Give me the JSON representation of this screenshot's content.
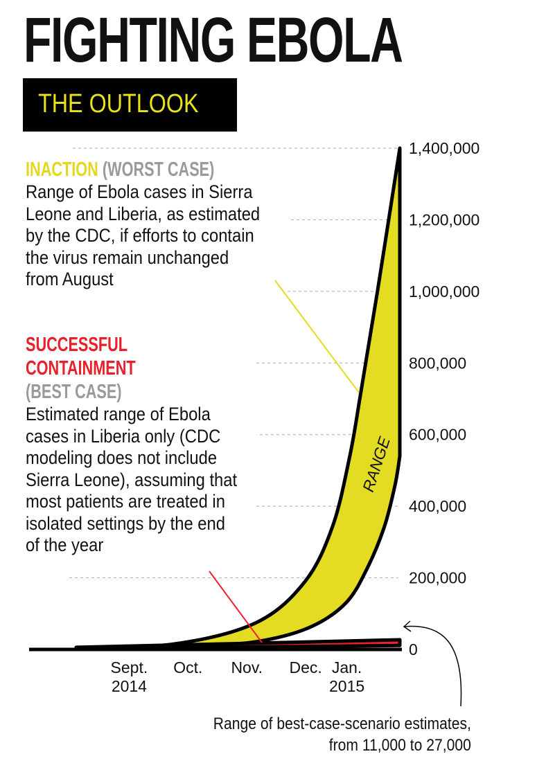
{
  "title": "FIGHTING EBOLA",
  "subtitle": "THE OUTLOOK",
  "worst_case": {
    "heading": "INACTION",
    "tag": "(WORST CASE)",
    "lines": [
      "Range of Ebola cases in Sierra",
      "Leone and Liberia, as estimated",
      "by the CDC, if efforts to contain",
      "the virus remain unchanged",
      "from August"
    ]
  },
  "best_case": {
    "heading_lines": [
      "SUCCESSFUL",
      "CONTAINMENT"
    ],
    "tag": "(BEST CASE)",
    "lines": [
      "Estimated range of Ebola",
      "cases in Liberia only (CDC",
      "modeling does not include",
      "Sierra Leone), assuming that",
      "most patients are treated in",
      "isolated settings by the end",
      "of the year"
    ]
  },
  "note": [
    "Range of best-case-scenario estimates,",
    "from 11,000 to 27,000"
  ],
  "colors": {
    "worst": "#e3dc22",
    "best": "#ec2230",
    "outline": "#000000",
    "grid": "#aaaaaa"
  },
  "chart_data": {
    "type": "area",
    "title": "Fighting Ebola: the outlook",
    "x_unit": "months since Sept. 1, 2014",
    "xlim": [
      -0.9,
      4.6
    ],
    "ylim": [
      0,
      1400000
    ],
    "grid": true,
    "y_ticks": [
      0,
      200000,
      400000,
      600000,
      800000,
      1000000,
      1200000,
      1400000
    ],
    "y_tick_labels": [
      "0",
      "200,000",
      "400,000",
      "600,000",
      "800,000",
      "1,000,000",
      "1,200,000",
      "1,400,000"
    ],
    "x_ticks": [
      {
        "x": 0,
        "lines": [
          "Sept.",
          "2014"
        ]
      },
      {
        "x": 1,
        "lines": [
          "Oct."
        ]
      },
      {
        "x": 2,
        "lines": [
          "Nov."
        ]
      },
      {
        "x": 3,
        "lines": [
          "Dec."
        ]
      },
      {
        "x": 3.7,
        "lines": [
          "Jan.",
          "2015"
        ]
      }
    ],
    "range_label": "RANGE",
    "series": [
      {
        "name": "Inaction (worst case) upper",
        "points": [
          [
            -0.9,
            5000
          ],
          [
            0.75,
            15000
          ],
          [
            2.16,
            75000
          ],
          [
            2.99,
            190000
          ],
          [
            3.46,
            345000
          ],
          [
            3.75,
            540000
          ],
          [
            3.93,
            710000
          ],
          [
            4.22,
            1000000
          ],
          [
            4.6,
            1400000
          ]
        ]
      },
      {
        "name": "Inaction (worst case) lower",
        "points": [
          [
            -0.9,
            4000
          ],
          [
            1.34,
            12000
          ],
          [
            2.28,
            25000
          ],
          [
            3.1,
            64000
          ],
          [
            3.69,
            131000
          ],
          [
            4.05,
            228000
          ],
          [
            4.34,
            344000
          ],
          [
            4.52,
            460000
          ],
          [
            4.6,
            540000
          ]
        ]
      },
      {
        "name": "Successful containment (best case) upper",
        "points": [
          [
            -0.9,
            6000
          ],
          [
            4.6,
            27000
          ]
        ]
      },
      {
        "name": "Successful containment (best case) lower",
        "points": [
          [
            -0.9,
            2000
          ],
          [
            4.6,
            11000
          ]
        ]
      }
    ]
  }
}
